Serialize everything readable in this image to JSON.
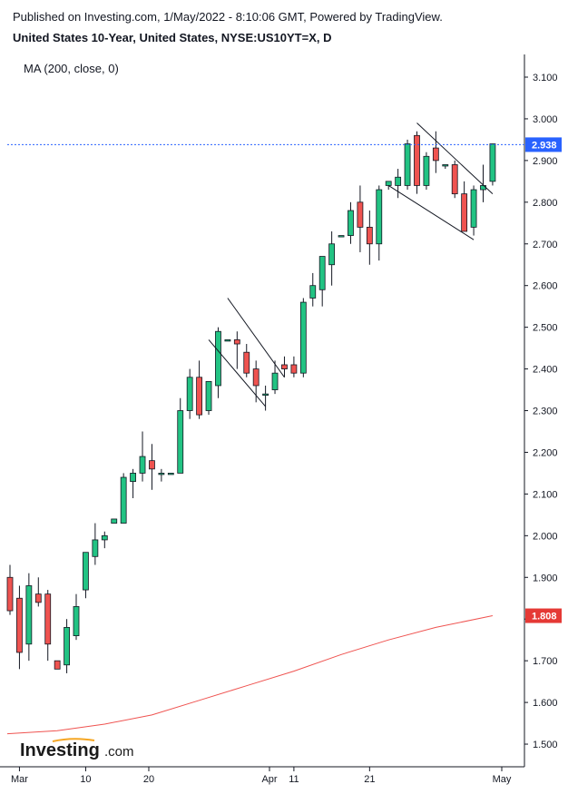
{
  "header": {
    "published": "Published on Investing.com, 1/May/2022 - 8:10:06 GMT, Powered by TradingView.",
    "symbol": "United States 10-Year, United States, NYSE:US10YT=X, D"
  },
  "indicator_label": "MA (200, close, 0)",
  "logo": {
    "main": "Investing",
    "suffix": ".com"
  },
  "colors": {
    "up": "#22c383",
    "down": "#ef5350",
    "ma": "#ef5350",
    "last_price_line": "#2962ff",
    "last_price_badge": "#2962ff",
    "ma_badge": "#e53935"
  },
  "chart_data": {
    "type": "candlestick",
    "title": "United States 10-Year, United States, NYSE:US10YT=X, D",
    "y_ticks": [
      "3.100",
      "3.000",
      "2.900",
      "2.800",
      "2.700",
      "2.600",
      "2.500",
      "2.400",
      "2.300",
      "2.200",
      "2.100",
      "2.000",
      "1.900",
      "1.800",
      "1.700",
      "1.600",
      "1.500"
    ],
    "ylim": [
      1.45,
      3.16
    ],
    "x_ticks": [
      {
        "label": "Mar",
        "date": "2022-03-01"
      },
      {
        "label": "10",
        "date": "2022-03-10"
      },
      {
        "label": "20",
        "date": "2022-03-20"
      },
      {
        "label": "Apr",
        "date": "2022-04-01"
      },
      {
        "label": "11",
        "date": "2022-04-11"
      },
      {
        "label": "21",
        "date": "2022-04-21"
      },
      {
        "label": "May",
        "date": "2022-05-01"
      }
    ],
    "candles": [
      {
        "date": "2022-02-28",
        "open": 1.9,
        "high": 1.93,
        "low": 1.81,
        "close": 1.82
      },
      {
        "date": "2022-03-01",
        "open": 1.85,
        "high": 1.88,
        "low": 1.68,
        "close": 1.72
      },
      {
        "date": "2022-03-02",
        "open": 1.74,
        "high": 1.91,
        "low": 1.7,
        "close": 1.88
      },
      {
        "date": "2022-03-03",
        "open": 1.86,
        "high": 1.9,
        "low": 1.83,
        "close": 1.84
      },
      {
        "date": "2022-03-04",
        "open": 1.86,
        "high": 1.87,
        "low": 1.7,
        "close": 1.74
      },
      {
        "date": "2022-03-07",
        "open": 1.7,
        "high": 1.7,
        "low": 1.68,
        "close": 1.68
      },
      {
        "date": "2022-03-08",
        "open": 1.69,
        "high": 1.8,
        "low": 1.67,
        "close": 1.78
      },
      {
        "date": "2022-03-09",
        "open": 1.76,
        "high": 1.86,
        "low": 1.75,
        "close": 1.83
      },
      {
        "date": "2022-03-10",
        "open": 1.87,
        "high": 1.96,
        "low": 1.85,
        "close": 1.96
      },
      {
        "date": "2022-03-11",
        "open": 1.95,
        "high": 2.03,
        "low": 1.93,
        "close": 1.99
      },
      {
        "date": "2022-03-14",
        "open": 1.99,
        "high": 2.01,
        "low": 1.97,
        "close": 2.0
      },
      {
        "date": "2022-03-15",
        "open": 2.03,
        "high": 2.04,
        "low": 2.03,
        "close": 2.04
      },
      {
        "date": "2022-03-16",
        "open": 2.03,
        "high": 2.15,
        "low": 2.03,
        "close": 2.14
      },
      {
        "date": "2022-03-17",
        "open": 2.13,
        "high": 2.16,
        "low": 2.09,
        "close": 2.15
      },
      {
        "date": "2022-03-18",
        "open": 2.15,
        "high": 2.25,
        "low": 2.13,
        "close": 2.19
      },
      {
        "date": "2022-03-21",
        "open": 2.18,
        "high": 2.22,
        "low": 2.11,
        "close": 2.16
      },
      {
        "date": "2022-03-22",
        "open": 2.15,
        "high": 2.16,
        "low": 2.13,
        "close": 2.15
      },
      {
        "date": "2022-03-23",
        "open": 2.15,
        "high": 2.15,
        "low": 2.15,
        "close": 2.15
      },
      {
        "date": "2022-03-24",
        "open": 2.15,
        "high": 2.33,
        "low": 2.15,
        "close": 2.3
      },
      {
        "date": "2022-03-25",
        "open": 2.3,
        "high": 2.4,
        "low": 2.28,
        "close": 2.38
      },
      {
        "date": "2022-03-28",
        "open": 2.38,
        "high": 2.42,
        "low": 2.28,
        "close": 2.29
      },
      {
        "date": "2022-03-29",
        "open": 2.3,
        "high": 2.37,
        "low": 2.29,
        "close": 2.37
      },
      {
        "date": "2022-03-30",
        "open": 2.36,
        "high": 2.5,
        "low": 2.33,
        "close": 2.49
      },
      {
        "date": "2022-03-31",
        "open": 2.47,
        "high": 2.47,
        "low": 2.47,
        "close": 2.47
      },
      {
        "date": "2022-04-01",
        "open": 2.47,
        "high": 2.49,
        "low": 2.4,
        "close": 2.46
      },
      {
        "date": "2022-04-04",
        "open": 2.44,
        "high": 2.46,
        "low": 2.38,
        "close": 2.39
      },
      {
        "date": "2022-04-05",
        "open": 2.4,
        "high": 2.42,
        "low": 2.32,
        "close": 2.36
      },
      {
        "date": "2022-04-06",
        "open": 2.34,
        "high": 2.36,
        "low": 2.3,
        "close": 2.34
      },
      {
        "date": "2022-04-07",
        "open": 2.35,
        "high": 2.42,
        "low": 2.34,
        "close": 2.39
      },
      {
        "date": "2022-04-08",
        "open": 2.41,
        "high": 2.43,
        "low": 2.38,
        "close": 2.4
      },
      {
        "date": "2022-04-11",
        "open": 2.41,
        "high": 2.43,
        "low": 2.38,
        "close": 2.39
      },
      {
        "date": "2022-04-12",
        "open": 2.39,
        "high": 2.57,
        "low": 2.38,
        "close": 2.56
      },
      {
        "date": "2022-04-13",
        "open": 2.57,
        "high": 2.63,
        "low": 2.55,
        "close": 2.6
      },
      {
        "date": "2022-04-14",
        "open": 2.59,
        "high": 2.67,
        "low": 2.55,
        "close": 2.67
      },
      {
        "date": "2022-04-15",
        "open": 2.65,
        "high": 2.73,
        "low": 2.6,
        "close": 2.7
      },
      {
        "date": "2022-04-18",
        "open": 2.72,
        "high": 2.72,
        "low": 2.72,
        "close": 2.72
      },
      {
        "date": "2022-04-19",
        "open": 2.72,
        "high": 2.8,
        "low": 2.7,
        "close": 2.78
      },
      {
        "date": "2022-04-20",
        "open": 2.8,
        "high": 2.84,
        "low": 2.68,
        "close": 2.74
      },
      {
        "date": "2022-04-21",
        "open": 2.74,
        "high": 2.78,
        "low": 2.65,
        "close": 2.7
      },
      {
        "date": "2022-04-22",
        "open": 2.7,
        "high": 2.84,
        "low": 2.66,
        "close": 2.83
      },
      {
        "date": "2022-04-25",
        "open": 2.84,
        "high": 2.85,
        "low": 2.83,
        "close": 2.85
      },
      {
        "date": "2022-04-26",
        "open": 2.84,
        "high": 2.88,
        "low": 2.81,
        "close": 2.86
      },
      {
        "date": "2022-04-27",
        "open": 2.84,
        "high": 2.95,
        "low": 2.83,
        "close": 2.94
      },
      {
        "date": "2022-04-28",
        "open": 2.96,
        "high": 2.97,
        "low": 2.82,
        "close": 2.84
      },
      {
        "date": "2022-04-29",
        "open": 2.84,
        "high": 2.92,
        "low": 2.83,
        "close": 2.91
      },
      {
        "date": "2022-05-02",
        "open": 2.93,
        "high": 2.97,
        "low": 2.87,
        "close": 2.9
      },
      {
        "date": "2022-05-03",
        "open": 2.89,
        "high": 2.89,
        "low": 2.88,
        "close": 2.89
      },
      {
        "date": "2022-05-04",
        "open": 2.89,
        "high": 2.9,
        "low": 2.81,
        "close": 2.82
      },
      {
        "date": "2022-05-05",
        "open": 2.82,
        "high": 2.85,
        "low": 2.73,
        "close": 2.73
      },
      {
        "date": "2022-05-06",
        "open": 2.74,
        "high": 2.84,
        "low": 2.72,
        "close": 2.83
      },
      {
        "date": "2022-05-09",
        "open": 2.83,
        "high": 2.89,
        "low": 2.8,
        "close": 2.84
      },
      {
        "date": "2022-05-10",
        "open": 2.85,
        "high": 2.94,
        "low": 2.84,
        "close": 2.94
      }
    ],
    "ma200": {
      "name": "MA (200, close, 0)",
      "points": [
        {
          "date": "2022-02-28",
          "value": 1.525
        },
        {
          "date": "2022-03-07",
          "value": 1.532
        },
        {
          "date": "2022-03-14",
          "value": 1.548
        },
        {
          "date": "2022-03-21",
          "value": 1.57
        },
        {
          "date": "2022-03-28",
          "value": 1.605
        },
        {
          "date": "2022-04-04",
          "value": 1.64
        },
        {
          "date": "2022-04-11",
          "value": 1.675
        },
        {
          "date": "2022-04-18",
          "value": 1.715
        },
        {
          "date": "2022-04-25",
          "value": 1.75
        },
        {
          "date": "2022-05-02",
          "value": 1.78
        },
        {
          "date": "2022-05-10",
          "value": 1.808
        }
      ]
    },
    "last_price": "2.938",
    "ma_last": "1.808",
    "trendlines": [
      {
        "from": {
          "date": "2022-03-29",
          "value": 2.47
        },
        "to": {
          "date": "2022-04-06",
          "value": 2.31
        }
      },
      {
        "from": {
          "date": "2022-03-31",
          "value": 2.57
        },
        "to": {
          "date": "2022-04-08",
          "value": 2.38
        }
      },
      {
        "from": {
          "date": "2022-04-25",
          "value": 2.84
        },
        "to": {
          "date": "2022-05-06",
          "value": 2.71
        }
      },
      {
        "from": {
          "date": "2022-04-28",
          "value": 2.99
        },
        "to": {
          "date": "2022-05-10",
          "value": 2.82
        }
      }
    ]
  }
}
